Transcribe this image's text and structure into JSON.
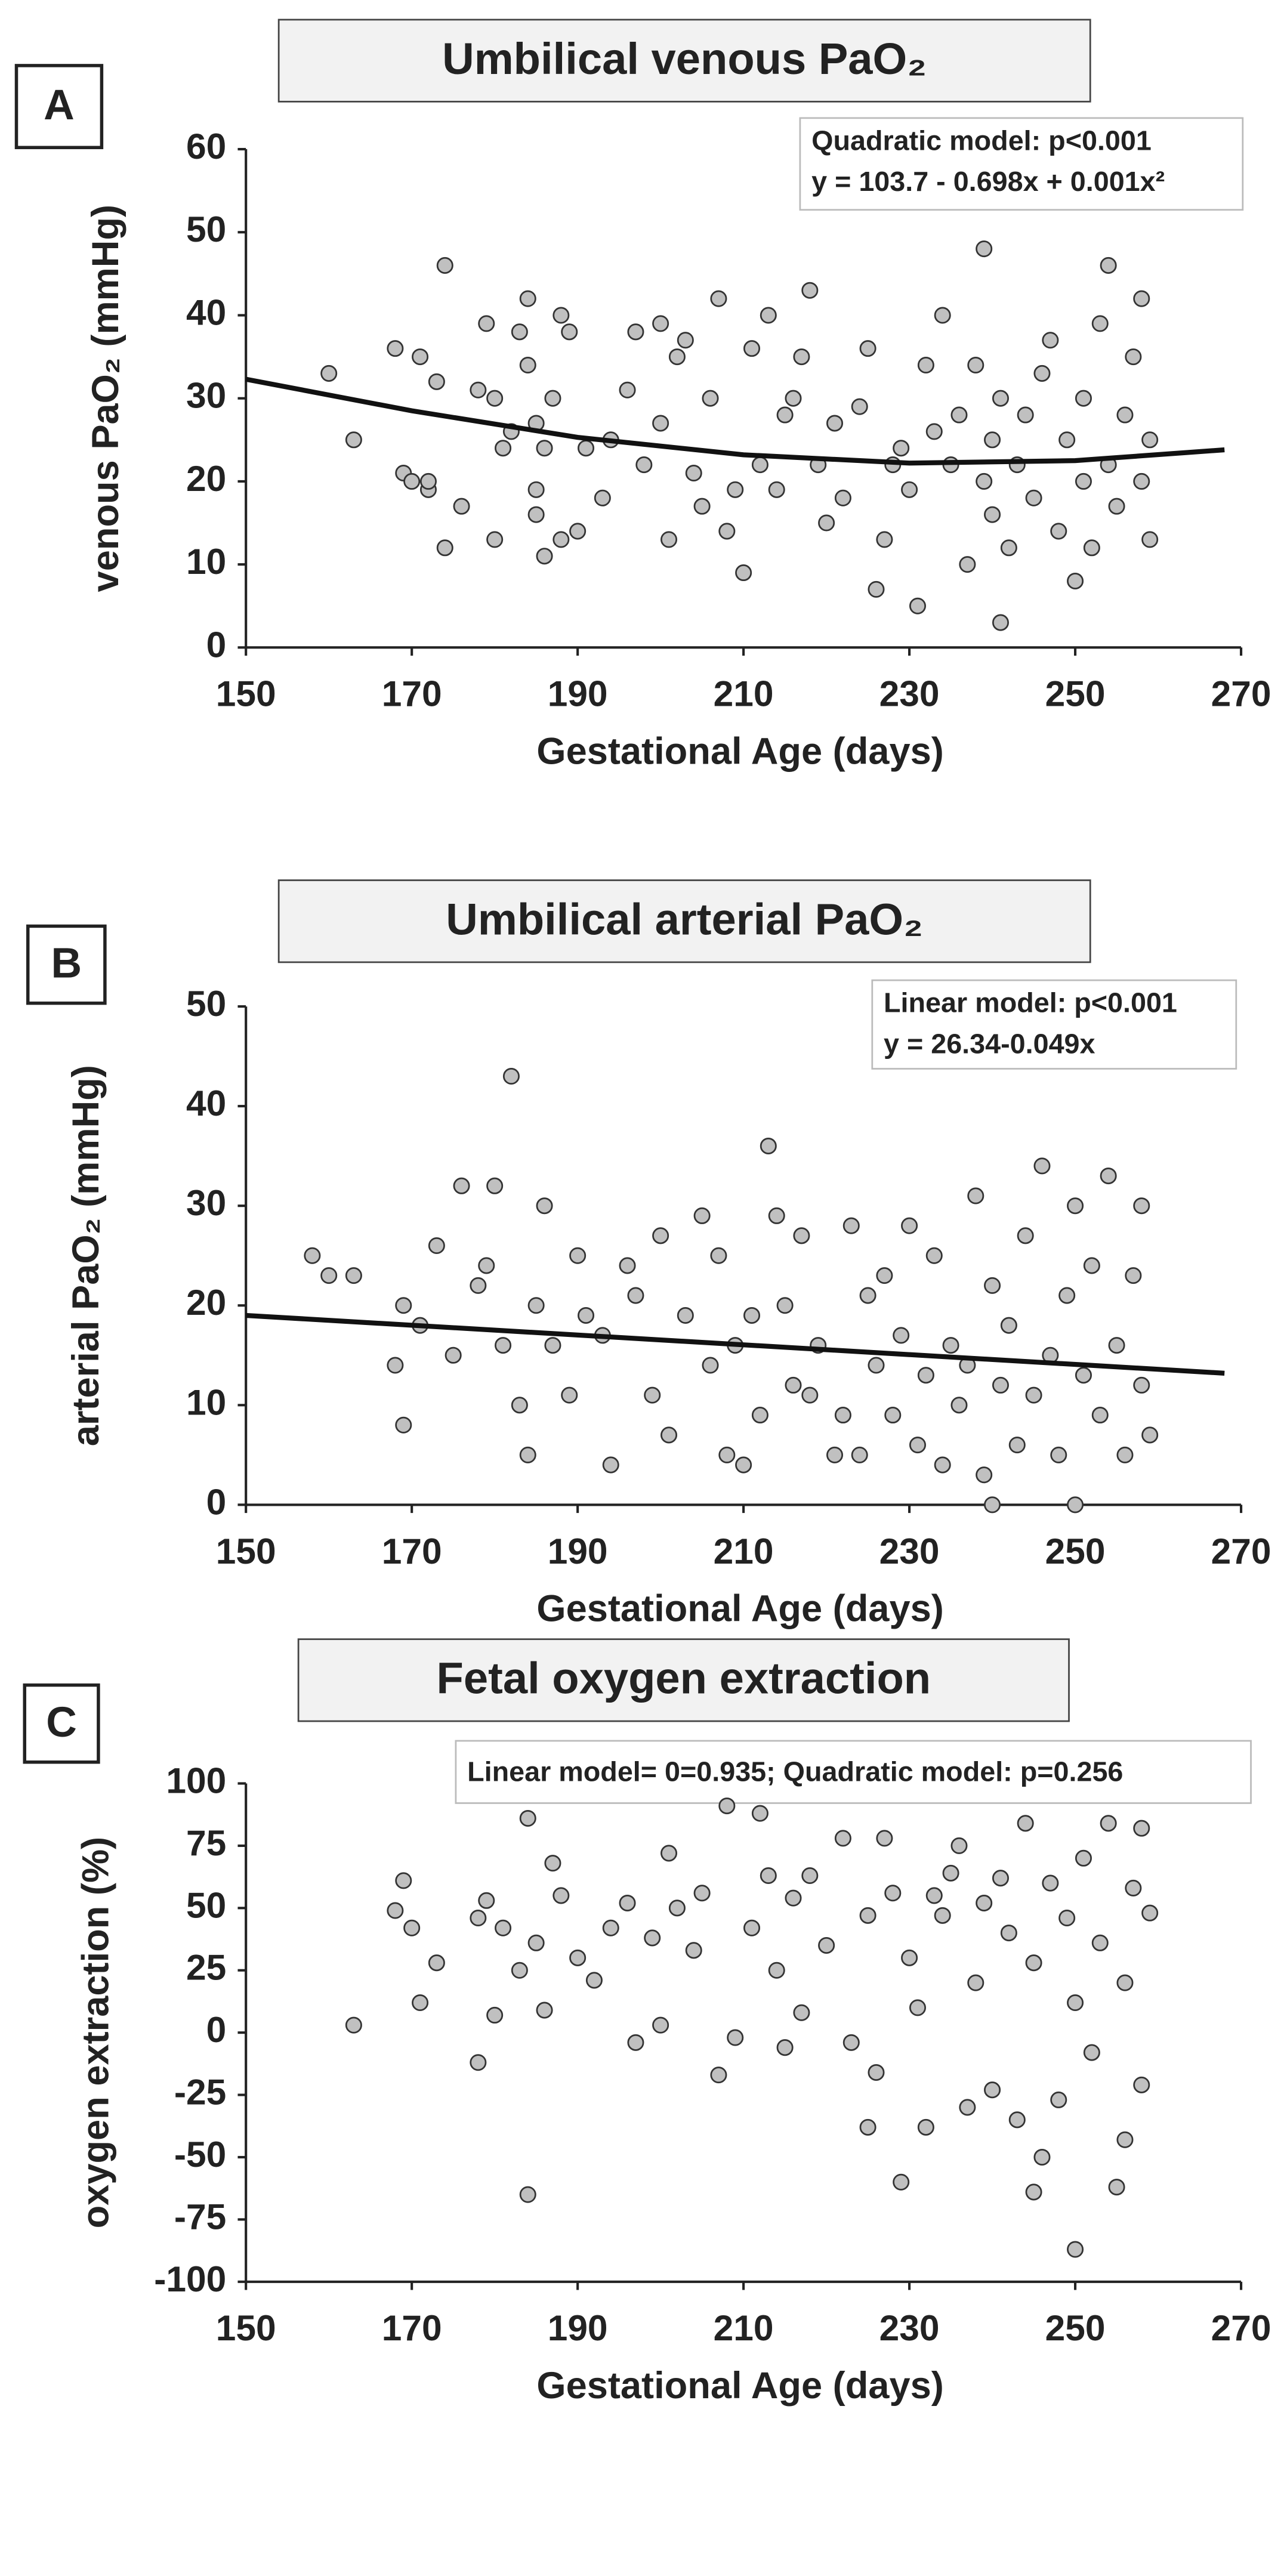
{
  "chart_data": [
    {
      "type": "scatter",
      "label": "A",
      "title": "Umbilical venous PaO₂",
      "xlabel": "Gestational Age (days)",
      "ylabel": "venous PaO₂ (mmHg)",
      "annotation": [
        "Quadratic model: p<0.001",
        "y = 103.7 - 0.698x + 0.001x²"
      ],
      "xlim": [
        150,
        270
      ],
      "xticks": [
        150,
        170,
        190,
        210,
        230,
        250,
        270
      ],
      "ylim": [
        0,
        60
      ],
      "yticks": [
        0,
        10,
        20,
        30,
        40,
        50,
        60
      ],
      "color": "#c0c0c0",
      "fit": {
        "x": [
          150,
          170,
          190,
          210,
          230,
          250,
          268
        ],
        "y": [
          32.3,
          28.5,
          25.3,
          23.2,
          22.2,
          22.5,
          23.8
        ]
      },
      "x": [
        160,
        163,
        168,
        169,
        170,
        171,
        172,
        172,
        173,
        174,
        174,
        176,
        178,
        179,
        180,
        180,
        181,
        182,
        183,
        184,
        184,
        185,
        185,
        185,
        186,
        186,
        187,
        188,
        188,
        189,
        190,
        191,
        193,
        194,
        196,
        197,
        198,
        200,
        200,
        201,
        202,
        203,
        204,
        205,
        206,
        207,
        208,
        209,
        210,
        211,
        212,
        213,
        214,
        215,
        216,
        217,
        218,
        219,
        220,
        221,
        222,
        224,
        225,
        226,
        227,
        228,
        229,
        230,
        231,
        232,
        233,
        234,
        235,
        236,
        237,
        238,
        239,
        239,
        240,
        240,
        241,
        241,
        242,
        243,
        244,
        245,
        246,
        247,
        248,
        249,
        250,
        251,
        251,
        252,
        253,
        254,
        254,
        255,
        256,
        257,
        258,
        258,
        259,
        259
      ],
      "y": [
        33,
        25,
        36,
        21,
        20,
        35,
        19,
        20,
        32,
        46,
        12,
        17,
        31,
        39,
        13,
        30,
        24,
        26,
        38,
        42,
        34,
        27,
        19,
        16,
        11,
        24,
        30,
        13,
        40,
        38,
        14,
        24,
        18,
        25,
        31,
        38,
        22,
        27,
        39,
        13,
        35,
        37,
        21,
        17,
        30,
        42,
        14,
        19,
        9,
        36,
        22,
        40,
        19,
        28,
        30,
        35,
        43,
        22,
        15,
        27,
        18,
        29,
        36,
        7,
        13,
        22,
        24,
        19,
        5,
        34,
        26,
        40,
        22,
        28,
        10,
        34,
        48,
        20,
        16,
        25,
        3,
        30,
        12,
        22,
        28,
        18,
        33,
        37,
        14,
        25,
        8,
        20,
        30,
        12,
        39,
        46,
        22,
        17,
        28,
        35,
        42,
        20,
        25,
        13
      ]
    },
    {
      "type": "scatter",
      "label": "B",
      "title": "Umbilical arterial PaO₂",
      "xlabel": "Gestational Age (days)",
      "ylabel": "arterial PaO₂ (mmHg)",
      "annotation": [
        "Linear model: p<0.001",
        "y = 26.34-0.049x"
      ],
      "xlim": [
        150,
        270
      ],
      "xticks": [
        150,
        170,
        190,
        210,
        230,
        250,
        270
      ],
      "ylim": [
        0,
        50
      ],
      "yticks": [
        0,
        10,
        20,
        30,
        40,
        50
      ],
      "color": "#c0c0c0",
      "fit": {
        "x": [
          150,
          268
        ],
        "y": [
          19.0,
          13.2
        ]
      },
      "x": [
        158,
        160,
        163,
        168,
        169,
        169,
        171,
        173,
        175,
        176,
        178,
        179,
        180,
        181,
        182,
        183,
        184,
        185,
        186,
        187,
        189,
        190,
        191,
        193,
        194,
        196,
        197,
        199,
        200,
        201,
        203,
        205,
        206,
        207,
        208,
        209,
        210,
        211,
        212,
        213,
        214,
        215,
        216,
        217,
        218,
        219,
        221,
        222,
        223,
        224,
        225,
        226,
        227,
        228,
        229,
        230,
        231,
        232,
        233,
        234,
        235,
        236,
        237,
        238,
        239,
        240,
        240,
        241,
        242,
        243,
        244,
        245,
        246,
        247,
        248,
        249,
        250,
        250,
        251,
        252,
        253,
        254,
        255,
        256,
        257,
        258,
        258,
        259
      ],
      "y": [
        25,
        23,
        23,
        14,
        20,
        8,
        18,
        26,
        15,
        32,
        22,
        24,
        32,
        16,
        43,
        10,
        5,
        20,
        30,
        16,
        11,
        25,
        19,
        17,
        4,
        24,
        21,
        11,
        27,
        7,
        19,
        29,
        14,
        25,
        5,
        16,
        4,
        19,
        9,
        36,
        29,
        20,
        12,
        27,
        11,
        16,
        5,
        9,
        28,
        5,
        21,
        14,
        23,
        9,
        17,
        28,
        6,
        13,
        25,
        4,
        16,
        10,
        14,
        31,
        3,
        0,
        22,
        12,
        18,
        6,
        27,
        11,
        34,
        15,
        5,
        21,
        0,
        30,
        13,
        24,
        9,
        33,
        16,
        5,
        23,
        30,
        12,
        7
      ]
    },
    {
      "type": "scatter",
      "label": "C",
      "title": "Fetal oxygen extraction",
      "xlabel": "Gestational Age (days)",
      "ylabel": "oxygen extraction (%)",
      "annotation": [
        "Linear model= 0=0.935; Quadratic model: p=0.256"
      ],
      "xlim": [
        150,
        270
      ],
      "xticks": [
        150,
        170,
        190,
        210,
        230,
        250,
        270
      ],
      "ylim": [
        -100,
        100
      ],
      "yticks": [
        -100,
        -75,
        -50,
        -25,
        0,
        25,
        50,
        75,
        100
      ],
      "color": "#c0c0c0",
      "x": [
        163,
        168,
        169,
        170,
        171,
        173,
        178,
        178,
        179,
        180,
        181,
        183,
        184,
        184,
        185,
        186,
        187,
        188,
        190,
        192,
        194,
        196,
        197,
        199,
        200,
        201,
        202,
        204,
        205,
        207,
        208,
        209,
        211,
        212,
        213,
        214,
        215,
        216,
        217,
        218,
        220,
        222,
        223,
        225,
        225,
        226,
        227,
        228,
        229,
        230,
        231,
        232,
        233,
        234,
        235,
        236,
        237,
        238,
        239,
        240,
        241,
        242,
        243,
        244,
        245,
        245,
        246,
        247,
        248,
        249,
        250,
        250,
        251,
        252,
        253,
        254,
        255,
        256,
        256,
        257,
        258,
        258,
        259
      ],
      "y": [
        3,
        49,
        61,
        42,
        12,
        28,
        -12,
        46,
        53,
        7,
        42,
        25,
        86,
        -65,
        36,
        9,
        68,
        55,
        30,
        21,
        42,
        52,
        -4,
        38,
        3,
        72,
        50,
        33,
        56,
        -17,
        91,
        -2,
        42,
        88,
        63,
        25,
        -6,
        54,
        8,
        63,
        35,
        78,
        -4,
        -38,
        47,
        -16,
        78,
        56,
        -60,
        30,
        10,
        -38,
        55,
        47,
        64,
        75,
        -30,
        20,
        52,
        -23,
        62,
        40,
        -35,
        84,
        -64,
        28,
        -50,
        60,
        -27,
        46,
        -87,
        12,
        70,
        -8,
        36,
        84,
        -62,
        -43,
        20,
        58,
        -21,
        82,
        48
      ]
    }
  ]
}
